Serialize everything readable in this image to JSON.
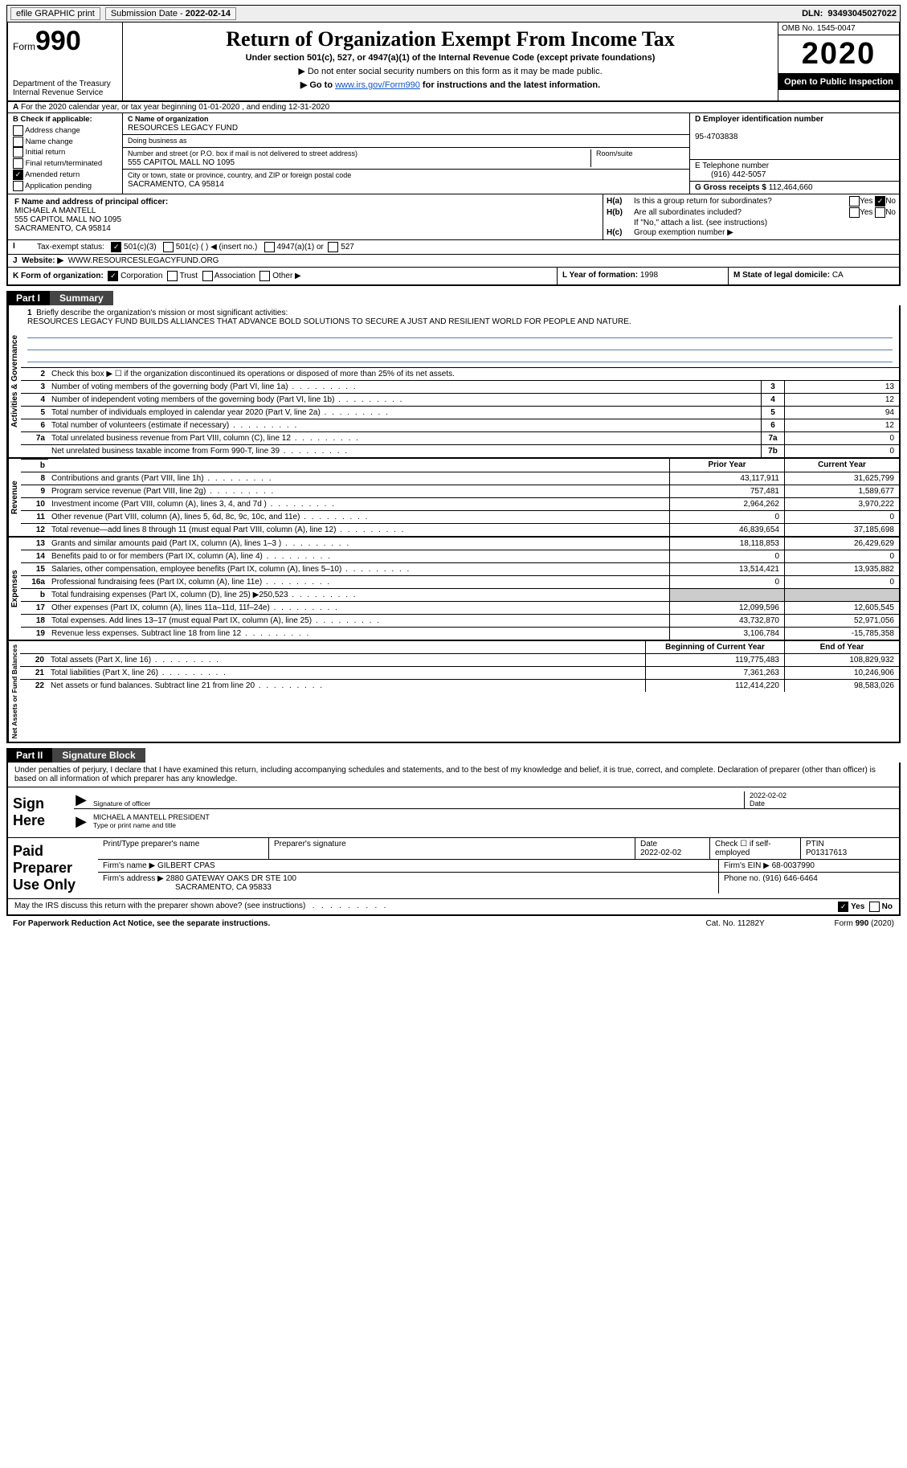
{
  "topbar": {
    "efile": "efile GRAPHIC print",
    "submission_label": "Submission Date - ",
    "submission_date": "2022-02-14",
    "dln_label": "DLN: ",
    "dln": "93493045027022"
  },
  "header": {
    "form_label": "Form",
    "form_number": "990",
    "dept": "Department of the Treasury\nInternal Revenue Service",
    "title": "Return of Organization Exempt From Income Tax",
    "subtitle": "Under section 501(c), 527, or 4947(a)(1) of the Internal Revenue Code (except private foundations)",
    "sub_arrow1": "▶ Do not enter social security numbers on this form as it may be made public.",
    "sub_arrow2_pre": "▶ Go to ",
    "sub_arrow2_link": "www.irs.gov/Form990",
    "sub_arrow2_post": " for instructions and the latest information.",
    "omb": "OMB No. 1545-0047",
    "year": "2020",
    "inspect": "Open to Public Inspection"
  },
  "lineA": "For the 2020 calendar year, or tax year beginning 01-01-2020   , and ending 12-31-2020",
  "boxB": {
    "title": "B Check if applicable:",
    "items": [
      {
        "label": "Address change",
        "checked": false
      },
      {
        "label": "Name change",
        "checked": false
      },
      {
        "label": "Initial return",
        "checked": false
      },
      {
        "label": "Final return/terminated",
        "checked": false
      },
      {
        "label": "Amended return",
        "checked": true
      },
      {
        "label": "Application pending",
        "checked": false
      }
    ]
  },
  "boxC": {
    "c_label": "C Name of organization",
    "org_name": "RESOURCES LEGACY FUND",
    "dba_label": "Doing business as",
    "addr_label": "Number and street (or P.O. box if mail is not delivered to street address)",
    "room_label": "Room/suite",
    "addr": "555 CAPITOL MALL NO 1095",
    "city_label": "City or town, state or province, country, and ZIP or foreign postal code",
    "city": "SACRAMENTO, CA  95814"
  },
  "boxD": {
    "label": "D Employer identification number",
    "ein": "95-4703838"
  },
  "boxE": {
    "label": "E Telephone number",
    "phone": "(916) 442-5057"
  },
  "boxG": {
    "label": "G Gross receipts $ ",
    "amount": "112,464,660"
  },
  "boxF": {
    "label": "F  Name and address of principal officer:",
    "name": "MICHAEL A MANTELL",
    "addr1": "555 CAPITOL MALL NO 1095",
    "addr2": "SACRAMENTO, CA  95814"
  },
  "boxH": {
    "a_label": "H(a)",
    "a_text": "Is this a group return for subordinates?",
    "a_yes": "Yes",
    "a_no": "No",
    "a_checked": "No",
    "b_label": "H(b)",
    "b_text": "Are all subordinates included?",
    "b_yes": "Yes",
    "b_no": "No",
    "b_note": "If \"No,\" attach a list. (see instructions)",
    "c_label": "H(c)",
    "c_text": "Group exemption number ▶"
  },
  "boxI": {
    "label": "I",
    "text": "Tax-exempt status:",
    "opts": {
      "c3": "501(c)(3)",
      "c3_checked": true,
      "c_blank": "501(c) (  ) ◀ (insert no.)",
      "a1": "4947(a)(1) or",
      "s527": "527"
    }
  },
  "boxJ": {
    "label": "J",
    "text": "Website: ▶",
    "url": "WWW.RESOURCESLEGACYFUND.ORG"
  },
  "boxK": {
    "label": "K Form of organization:",
    "corp": "Corporation",
    "corp_checked": true,
    "trust": "Trust",
    "assoc": "Association",
    "other": "Other ▶"
  },
  "boxL": {
    "label": "L Year of formation: ",
    "val": "1998"
  },
  "boxM": {
    "label": "M State of legal domicile: ",
    "val": "CA"
  },
  "part1": {
    "tag": "Part I",
    "title": "Summary",
    "brief_label": "Briefly describe the organization's mission or most significant activities:",
    "brief_text": "RESOURCES LEGACY FUND BUILDS ALLIANCES THAT ADVANCE BOLD SOLUTIONS TO SECURE A JUST AND RESILIENT WORLD FOR PEOPLE AND NATURE.",
    "line2": "Check this box ▶ ☐  if the organization discontinued its operations or disposed of more than 25% of its net assets.",
    "governance_lines": [
      {
        "n": "3",
        "d": "Number of voting members of the governing body (Part VI, line 1a)",
        "box": "3",
        "v": "13"
      },
      {
        "n": "4",
        "d": "Number of independent voting members of the governing body (Part VI, line 1b)",
        "box": "4",
        "v": "12"
      },
      {
        "n": "5",
        "d": "Total number of individuals employed in calendar year 2020 (Part V, line 2a)",
        "box": "5",
        "v": "94"
      },
      {
        "n": "6",
        "d": "Total number of volunteers (estimate if necessary)",
        "box": "6",
        "v": "12"
      },
      {
        "n": "7a",
        "d": "Total unrelated business revenue from Part VIII, column (C), line 12",
        "box": "7a",
        "v": "0"
      },
      {
        "n": "",
        "d": "Net unrelated business taxable income from Form 990-T, line 39",
        "box": "7b",
        "v": "0"
      }
    ],
    "rev_hdr": {
      "prior": "Prior Year",
      "current": "Current Year"
    },
    "revenue": [
      {
        "n": "8",
        "d": "Contributions and grants (Part VIII, line 1h)",
        "p": "43,117,911",
        "c": "31,625,799"
      },
      {
        "n": "9",
        "d": "Program service revenue (Part VIII, line 2g)",
        "p": "757,481",
        "c": "1,589,677"
      },
      {
        "n": "10",
        "d": "Investment income (Part VIII, column (A), lines 3, 4, and 7d )",
        "p": "2,964,262",
        "c": "3,970,222"
      },
      {
        "n": "11",
        "d": "Other revenue (Part VIII, column (A), lines 5, 6d, 8c, 9c, 10c, and 11e)",
        "p": "0",
        "c": "0"
      },
      {
        "n": "12",
        "d": "Total revenue—add lines 8 through 11 (must equal Part VIII, column (A), line 12)",
        "p": "46,839,654",
        "c": "37,185,698"
      }
    ],
    "expenses": [
      {
        "n": "13",
        "d": "Grants and similar amounts paid (Part IX, column (A), lines 1–3 )",
        "p": "18,118,853",
        "c": "26,429,629"
      },
      {
        "n": "14",
        "d": "Benefits paid to or for members (Part IX, column (A), line 4)",
        "p": "0",
        "c": "0"
      },
      {
        "n": "15",
        "d": "Salaries, other compensation, employee benefits (Part IX, column (A), lines 5–10)",
        "p": "13,514,421",
        "c": "13,935,882"
      },
      {
        "n": "16a",
        "d": "Professional fundraising fees (Part IX, column (A), line 11e)",
        "p": "0",
        "c": "0"
      },
      {
        "n": "b",
        "d": "Total fundraising expenses (Part IX, column (D), line 25) ▶250,523",
        "p": "",
        "c": "",
        "grey": true
      },
      {
        "n": "17",
        "d": "Other expenses (Part IX, column (A), lines 11a–11d, 11f–24e)",
        "p": "12,099,596",
        "c": "12,605,545"
      },
      {
        "n": "18",
        "d": "Total expenses. Add lines 13–17 (must equal Part IX, column (A), line 25)",
        "p": "43,732,870",
        "c": "52,971,056"
      },
      {
        "n": "19",
        "d": "Revenue less expenses. Subtract line 18 from line 12",
        "p": "3,106,784",
        "c": "-15,785,358"
      }
    ],
    "net_hdr": {
      "prior": "Beginning of Current Year",
      "current": "End of Year"
    },
    "netassets": [
      {
        "n": "20",
        "d": "Total assets (Part X, line 16)",
        "p": "119,775,483",
        "c": "108,829,932"
      },
      {
        "n": "21",
        "d": "Total liabilities (Part X, line 26)",
        "p": "7,361,263",
        "c": "10,246,906"
      },
      {
        "n": "22",
        "d": "Net assets or fund balances. Subtract line 21 from line 20",
        "p": "112,414,220",
        "c": "98,583,026"
      }
    ],
    "vlabels": {
      "gov": "Activities & Governance",
      "rev": "Revenue",
      "exp": "Expenses",
      "net": "Net Assets or Fund Balances"
    }
  },
  "part2": {
    "tag": "Part II",
    "title": "Signature Block",
    "declare": "Under penalties of perjury, I declare that I have examined this return, including accompanying schedules and statements, and to the best of my knowledge and belief, it is true, correct, and complete. Declaration of preparer (other than officer) is based on all information of which preparer has any knowledge.",
    "sign_here": "Sign Here",
    "sig_officer_label": "Signature of officer",
    "sig_date": "2022-02-02",
    "date_label": "Date",
    "officer_name": "MICHAEL A MANTELL PRESIDENT",
    "officer_name_label": "Type or print name and title",
    "paid": "Paid Preparer Use Only",
    "phdr": {
      "name": "Print/Type preparer's name",
      "sig": "Preparer's signature",
      "date": "Date",
      "date_v": "2022-02-02",
      "se": "Check ☐ if self-employed",
      "ptin": "PTIN",
      "ptin_v": "P01317613"
    },
    "firm_name_l": "Firm's name    ▶",
    "firm_name": "GILBERT CPAS",
    "firm_ein_l": "Firm's EIN ▶",
    "firm_ein": "68-0037990",
    "firm_addr_l": "Firm's address ▶",
    "firm_addr": "2880 GATEWAY OAKS DR STE 100",
    "firm_city": "SACRAMENTO, CA  95833",
    "firm_phone_l": "Phone no. ",
    "firm_phone": "(916) 646-6464",
    "discuss": "May the IRS discuss this return with the preparer shown above? (see instructions)",
    "discuss_yes": "Yes",
    "discuss_no": "No"
  },
  "footer": {
    "left": "For Paperwork Reduction Act Notice, see the separate instructions.",
    "mid": "Cat. No. 11282Y",
    "right": "Form 990 (2020)"
  },
  "style": {
    "accent": "#1155cc",
    "grey": "#cccccc"
  }
}
